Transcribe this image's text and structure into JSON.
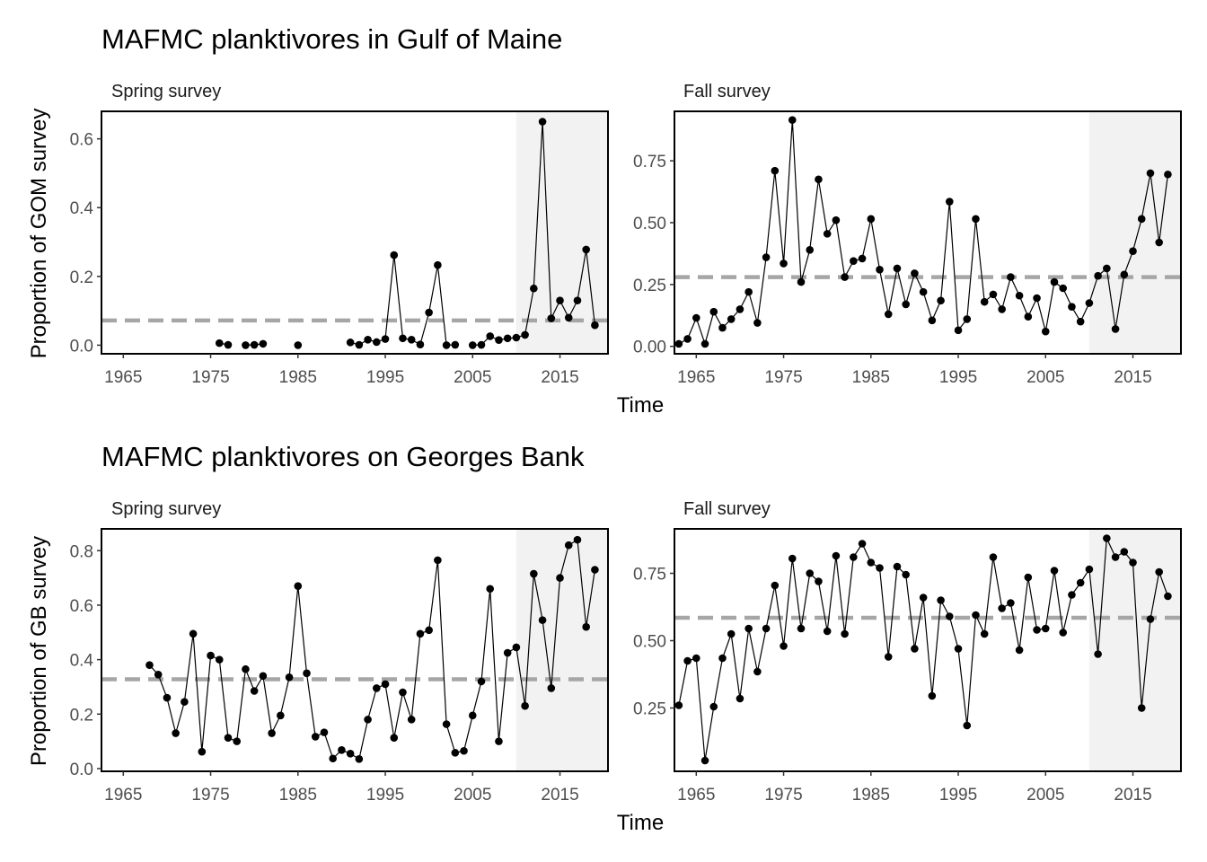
{
  "row_titles": {
    "gom": "MAFMC planktivores in Gulf of Maine",
    "gb": "MAFMC planktivores on Georges Bank"
  },
  "y_labels": {
    "gom": "Proportion of GOM survey",
    "gb": "Proportion of GB survey"
  },
  "x_label": "Time",
  "colors": {
    "points": "#000000",
    "mean_line": "#a6a6a6",
    "recent_shade": "#f2f2f2",
    "axis": "#000000",
    "tick_text": "#4d4d4d"
  },
  "chart_data": [
    {
      "type": "line",
      "panel": "Spring survey",
      "region": "Gulf of Maine",
      "ylabel": "Proportion of GOM survey",
      "xlabel": "Time",
      "xlim": [
        1962.5,
        2020.5
      ],
      "ylim": [
        -0.025,
        0.68
      ],
      "x_ticks": [
        1965,
        1975,
        1985,
        1995,
        2005,
        2015
      ],
      "y_ticks": [
        0.0,
        0.2,
        0.4,
        0.6
      ],
      "y_tick_labels": [
        "0.0",
        "0.2",
        "0.4",
        "0.6"
      ],
      "mean": 0.072,
      "shaded_range": [
        2010,
        2020.5
      ],
      "points": [
        [
          1976,
          0.006
        ],
        [
          1977,
          0.001
        ],
        [
          1979,
          0.0
        ],
        [
          1980,
          0.001
        ],
        [
          1981,
          0.004
        ],
        [
          1985,
          0.0
        ],
        [
          1991,
          0.008
        ],
        [
          1992,
          0.001
        ],
        [
          1993,
          0.016
        ],
        [
          1994,
          0.009
        ],
        [
          1995,
          0.018
        ],
        [
          1996,
          0.262
        ],
        [
          1997,
          0.02
        ],
        [
          1998,
          0.016
        ],
        [
          1999,
          0.002
        ],
        [
          2000,
          0.095
        ],
        [
          2001,
          0.233
        ],
        [
          2002,
          0.0
        ],
        [
          2003,
          0.001
        ],
        [
          2005,
          0.0
        ],
        [
          2006,
          0.001
        ],
        [
          2007,
          0.026
        ],
        [
          2008,
          0.015
        ],
        [
          2009,
          0.02
        ],
        [
          2010,
          0.022
        ],
        [
          2011,
          0.03
        ],
        [
          2012,
          0.165
        ],
        [
          2013,
          0.65
        ],
        [
          2014,
          0.078
        ],
        [
          2015,
          0.13
        ],
        [
          2016,
          0.08
        ],
        [
          2017,
          0.13
        ],
        [
          2018,
          0.278
        ],
        [
          2019,
          0.058
        ]
      ],
      "segments": [
        [
          1976,
          1977
        ],
        [
          1979,
          1981
        ],
        [
          1991,
          2003
        ],
        [
          2005,
          2019
        ]
      ]
    },
    {
      "type": "line",
      "panel": "Fall survey",
      "region": "Gulf of Maine",
      "ylabel": "Proportion of GOM survey",
      "xlabel": "Time",
      "xlim": [
        1962.5,
        2020.5
      ],
      "ylim": [
        -0.03,
        0.95
      ],
      "x_ticks": [
        1965,
        1975,
        1985,
        1995,
        2005,
        2015
      ],
      "y_ticks": [
        0.0,
        0.25,
        0.5,
        0.75
      ],
      "y_tick_labels": [
        "0.00",
        "0.25",
        "0.50",
        "0.75"
      ],
      "mean": 0.28,
      "shaded_range": [
        2010,
        2020.5
      ],
      "points": [
        [
          1963,
          0.01
        ],
        [
          1964,
          0.03
        ],
        [
          1965,
          0.115
        ],
        [
          1966,
          0.01
        ],
        [
          1967,
          0.14
        ],
        [
          1968,
          0.075
        ],
        [
          1969,
          0.11
        ],
        [
          1970,
          0.15
        ],
        [
          1971,
          0.22
        ],
        [
          1972,
          0.095
        ],
        [
          1973,
          0.36
        ],
        [
          1974,
          0.71
        ],
        [
          1975,
          0.335
        ],
        [
          1976,
          0.915
        ],
        [
          1977,
          0.26
        ],
        [
          1978,
          0.39
        ],
        [
          1979,
          0.675
        ],
        [
          1980,
          0.455
        ],
        [
          1981,
          0.51
        ],
        [
          1982,
          0.28
        ],
        [
          1983,
          0.345
        ],
        [
          1984,
          0.355
        ],
        [
          1985,
          0.515
        ],
        [
          1986,
          0.31
        ],
        [
          1987,
          0.13
        ],
        [
          1988,
          0.315
        ],
        [
          1989,
          0.17
        ],
        [
          1990,
          0.295
        ],
        [
          1991,
          0.22
        ],
        [
          1992,
          0.105
        ],
        [
          1993,
          0.185
        ],
        [
          1994,
          0.585
        ],
        [
          1995,
          0.065
        ],
        [
          1996,
          0.11
        ],
        [
          1997,
          0.515
        ],
        [
          1998,
          0.18
        ],
        [
          1999,
          0.21
        ],
        [
          2000,
          0.15
        ],
        [
          2001,
          0.28
        ],
        [
          2002,
          0.205
        ],
        [
          2003,
          0.12
        ],
        [
          2004,
          0.195
        ],
        [
          2005,
          0.06
        ],
        [
          2006,
          0.26
        ],
        [
          2007,
          0.235
        ],
        [
          2008,
          0.16
        ],
        [
          2009,
          0.1
        ],
        [
          2010,
          0.175
        ],
        [
          2011,
          0.285
        ],
        [
          2012,
          0.315
        ],
        [
          2013,
          0.07
        ],
        [
          2014,
          0.29
        ],
        [
          2015,
          0.385
        ],
        [
          2016,
          0.515
        ],
        [
          2017,
          0.7
        ],
        [
          2018,
          0.42
        ],
        [
          2019,
          0.695
        ]
      ],
      "segments": [
        [
          1963,
          2019
        ]
      ]
    },
    {
      "type": "line",
      "panel": "Spring survey",
      "region": "Georges Bank",
      "ylabel": "Proportion of GB survey",
      "xlabel": "Time",
      "xlim": [
        1962.5,
        2020.5
      ],
      "ylim": [
        -0.01,
        0.88
      ],
      "x_ticks": [
        1965,
        1975,
        1985,
        1995,
        2005,
        2015
      ],
      "y_ticks": [
        0.0,
        0.2,
        0.4,
        0.6,
        0.8
      ],
      "y_tick_labels": [
        "0.0",
        "0.2",
        "0.4",
        "0.6",
        "0.8"
      ],
      "mean": 0.328,
      "shaded_range": [
        2010,
        2020.5
      ],
      "points": [
        [
          1968,
          0.38
        ],
        [
          1969,
          0.345
        ],
        [
          1970,
          0.26
        ],
        [
          1971,
          0.13
        ],
        [
          1972,
          0.245
        ],
        [
          1973,
          0.495
        ],
        [
          1974,
          0.062
        ],
        [
          1975,
          0.415
        ],
        [
          1976,
          0.4
        ],
        [
          1977,
          0.113
        ],
        [
          1978,
          0.1
        ],
        [
          1979,
          0.365
        ],
        [
          1980,
          0.285
        ],
        [
          1981,
          0.34
        ],
        [
          1982,
          0.13
        ],
        [
          1983,
          0.195
        ],
        [
          1984,
          0.335
        ],
        [
          1985,
          0.67
        ],
        [
          1986,
          0.35
        ],
        [
          1987,
          0.117
        ],
        [
          1988,
          0.133
        ],
        [
          1989,
          0.037
        ],
        [
          1990,
          0.068
        ],
        [
          1991,
          0.055
        ],
        [
          1992,
          0.035
        ],
        [
          1993,
          0.18
        ],
        [
          1994,
          0.295
        ],
        [
          1995,
          0.31
        ],
        [
          1996,
          0.113
        ],
        [
          1997,
          0.28
        ],
        [
          1998,
          0.18
        ],
        [
          1999,
          0.495
        ],
        [
          2000,
          0.508
        ],
        [
          2001,
          0.765
        ],
        [
          2002,
          0.163
        ],
        [
          2003,
          0.058
        ],
        [
          2004,
          0.065
        ],
        [
          2005,
          0.195
        ],
        [
          2006,
          0.32
        ],
        [
          2007,
          0.66
        ],
        [
          2008,
          0.1
        ],
        [
          2009,
          0.425
        ],
        [
          2010,
          0.445
        ],
        [
          2011,
          0.23
        ],
        [
          2012,
          0.715
        ],
        [
          2013,
          0.545
        ],
        [
          2014,
          0.295
        ],
        [
          2015,
          0.7
        ],
        [
          2016,
          0.82
        ],
        [
          2017,
          0.84
        ],
        [
          2018,
          0.52
        ],
        [
          2019,
          0.73
        ]
      ],
      "segments": [
        [
          1968,
          2019
        ]
      ]
    },
    {
      "type": "line",
      "panel": "Fall survey",
      "region": "Georges Bank",
      "ylabel": "Proportion of GB survey",
      "xlabel": "Time",
      "xlim": [
        1962.5,
        2020.5
      ],
      "ylim": [
        0.015,
        0.915
      ],
      "x_ticks": [
        1965,
        1975,
        1985,
        1995,
        2005,
        2015
      ],
      "y_ticks": [
        0.25,
        0.5,
        0.75
      ],
      "y_tick_labels": [
        "0.25",
        "0.50",
        "0.75"
      ],
      "mean": 0.585,
      "shaded_range": [
        2010,
        2020.5
      ],
      "points": [
        [
          1963,
          0.26
        ],
        [
          1964,
          0.425
        ],
        [
          1965,
          0.435
        ],
        [
          1966,
          0.055
        ],
        [
          1967,
          0.255
        ],
        [
          1968,
          0.435
        ],
        [
          1969,
          0.525
        ],
        [
          1970,
          0.285
        ],
        [
          1971,
          0.545
        ],
        [
          1972,
          0.385
        ],
        [
          1973,
          0.545
        ],
        [
          1974,
          0.705
        ],
        [
          1975,
          0.48
        ],
        [
          1976,
          0.805
        ],
        [
          1977,
          0.545
        ],
        [
          1978,
          0.75
        ],
        [
          1979,
          0.72
        ],
        [
          1980,
          0.535
        ],
        [
          1981,
          0.815
        ],
        [
          1982,
          0.525
        ],
        [
          1983,
          0.81
        ],
        [
          1984,
          0.86
        ],
        [
          1985,
          0.79
        ],
        [
          1986,
          0.77
        ],
        [
          1987,
          0.44
        ],
        [
          1988,
          0.775
        ],
        [
          1989,
          0.745
        ],
        [
          1990,
          0.47
        ],
        [
          1991,
          0.66
        ],
        [
          1992,
          0.295
        ],
        [
          1993,
          0.65
        ],
        [
          1994,
          0.59
        ],
        [
          1995,
          0.47
        ],
        [
          1996,
          0.185
        ],
        [
          1997,
          0.595
        ],
        [
          1998,
          0.525
        ],
        [
          1999,
          0.81
        ],
        [
          2000,
          0.62
        ],
        [
          2001,
          0.64
        ],
        [
          2002,
          0.465
        ],
        [
          2003,
          0.735
        ],
        [
          2004,
          0.54
        ],
        [
          2005,
          0.545
        ],
        [
          2006,
          0.76
        ],
        [
          2007,
          0.53
        ],
        [
          2008,
          0.67
        ],
        [
          2009,
          0.715
        ],
        [
          2010,
          0.765
        ],
        [
          2011,
          0.45
        ],
        [
          2012,
          0.88
        ],
        [
          2013,
          0.81
        ],
        [
          2014,
          0.83
        ],
        [
          2015,
          0.79
        ],
        [
          2016,
          0.25
        ],
        [
          2017,
          0.58
        ],
        [
          2018,
          0.755
        ],
        [
          2019,
          0.665
        ]
      ],
      "segments": [
        [
          1963,
          2019
        ]
      ]
    }
  ]
}
